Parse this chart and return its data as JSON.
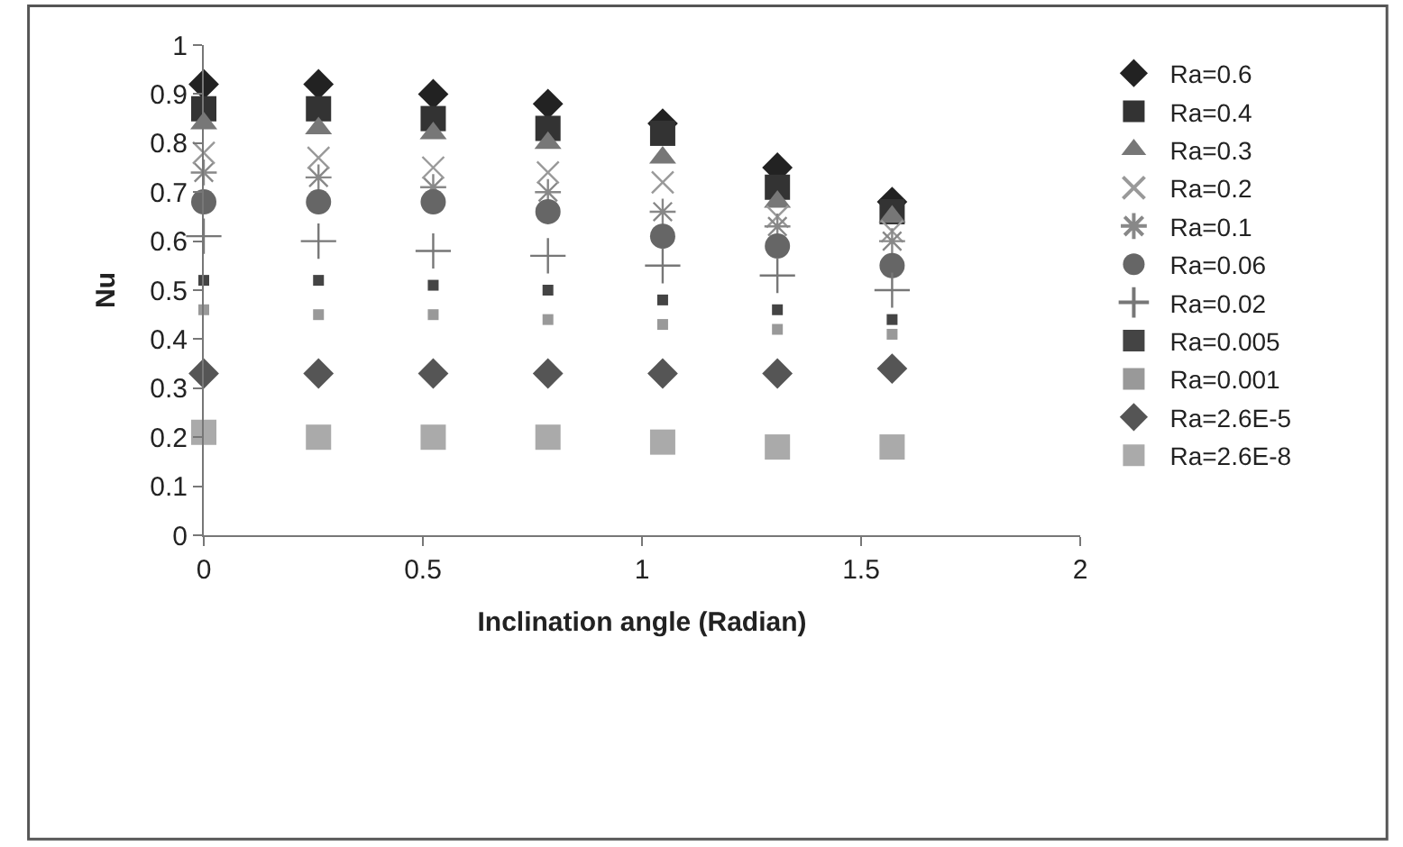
{
  "chart_data": {
    "type": "scatter",
    "xlabel": "Inclination angle (Radian)",
    "ylabel": "Nu",
    "x": [
      0,
      0.2618,
      0.5236,
      0.7854,
      1.0472,
      1.309,
      1.5708
    ],
    "xlim": [
      0,
      2
    ],
    "xticks": [
      0,
      0.5,
      1,
      1.5,
      2
    ],
    "ylim": [
      0,
      1
    ],
    "yticks": [
      0,
      0.1,
      0.2,
      0.3,
      0.4,
      0.5,
      0.6,
      0.7,
      0.8,
      0.9,
      1
    ],
    "grid": false,
    "legend": "right",
    "series": [
      {
        "name": "Ra=0.6",
        "color": "#222222",
        "marker": "diamond",
        "values": [
          0.92,
          0.92,
          0.9,
          0.88,
          0.84,
          0.75,
          0.68
        ]
      },
      {
        "name": "Ra=0.4",
        "color": "#333333",
        "marker": "square",
        "values": [
          0.87,
          0.87,
          0.85,
          0.83,
          0.82,
          0.71,
          0.66
        ]
      },
      {
        "name": "Ra=0.3",
        "color": "#777777",
        "marker": "triangle",
        "values": [
          0.84,
          0.83,
          0.82,
          0.8,
          0.77,
          0.68,
          0.65
        ]
      },
      {
        "name": "Ra=0.2",
        "color": "#999999",
        "marker": "cross",
        "values": [
          0.78,
          0.77,
          0.75,
          0.74,
          0.72,
          0.65,
          0.62
        ]
      },
      {
        "name": "Ra=0.1",
        "color": "#888888",
        "marker": "cross",
        "values": [
          0.74,
          0.73,
          0.71,
          0.7,
          0.66,
          0.63,
          0.6
        ]
      },
      {
        "name": "Ra=0.06",
        "color": "#666666",
        "marker": "circle",
        "values": [
          0.68,
          0.68,
          0.68,
          0.66,
          0.61,
          0.59,
          0.55
        ]
      },
      {
        "name": "Ra=0.02",
        "color": "#777777",
        "marker": "cross",
        "values": [
          0.61,
          0.6,
          0.58,
          0.57,
          0.55,
          0.53,
          0.5
        ]
      },
      {
        "name": "Ra=0.005",
        "color": "#444444",
        "marker": "square",
        "values": [
          0.52,
          0.52,
          0.51,
          0.5,
          0.48,
          0.46,
          0.44
        ]
      },
      {
        "name": "Ra=0.001",
        "color": "#999999",
        "marker": "square",
        "values": [
          0.46,
          0.45,
          0.45,
          0.44,
          0.43,
          0.42,
          0.41
        ]
      },
      {
        "name": "Ra=2.6E-5",
        "color": "#555555",
        "marker": "diamond",
        "values": [
          0.33,
          0.33,
          0.33,
          0.33,
          0.33,
          0.33,
          0.34
        ]
      },
      {
        "name": "Ra=2.6E-8",
        "color": "#aaaaaa",
        "marker": "square",
        "values": [
          0.21,
          0.2,
          0.2,
          0.2,
          0.19,
          0.18,
          0.18
        ]
      }
    ]
  }
}
